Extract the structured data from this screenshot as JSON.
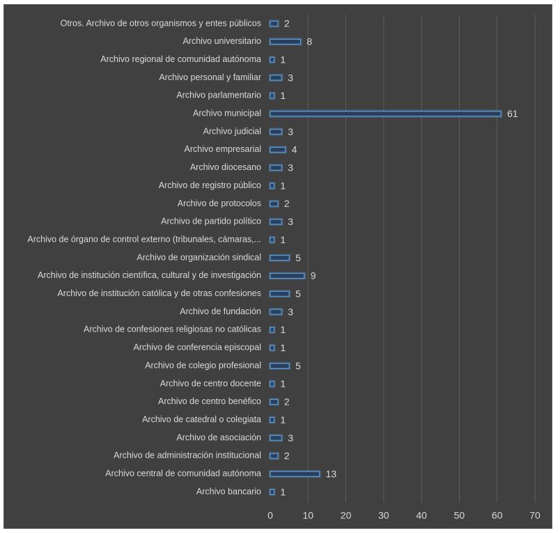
{
  "chart_data": {
    "type": "bar",
    "orientation": "horizontal",
    "title": "",
    "xlabel": "",
    "ylabel": "",
    "xlim": [
      0,
      70
    ],
    "x_ticks": [
      0,
      10,
      20,
      30,
      40,
      50,
      60,
      70
    ],
    "grid": "vertical",
    "legend": "none",
    "colors": {
      "background": "#404040",
      "bar_fill": "#2a3f5c",
      "bar_edge": "#5b9bd5",
      "text": "#d9d9d9",
      "grid": "#5e5e5e"
    },
    "categories": [
      "Otros. Archivo de otros organismos y entes públicos",
      "Archivo universitario",
      "Archivo regional de comunidad autónoma",
      "Archivo personal y familiar",
      "Archivo parlamentario",
      "Archivo municipal",
      "Archivo judicial",
      "Archivo empresarial",
      "Archivo diocesano",
      "Archivo de registro público",
      "Archivo de protocolos",
      "Archivo de partido político",
      "Archivo de órgano de control externo (tribunales, cámaras,...",
      "Archivo de organización sindical",
      "Archivo de institución científica, cultural y de investigación",
      "Archivo de institución católica y de otras confesiones",
      "Archivo de fundación",
      "Archivo de confesiones religiosas no católicas",
      "Archivo de conferencia episcopal",
      "Archivo de colegio profesional",
      "Archivo de centro docente",
      "Archivo de centro benéfico",
      "Archivo de catedral o colegiata",
      "Archivo de asociación",
      "Archivo de administración institucional",
      "Archivo central de comunidad autónoma",
      "Archivo bancario"
    ],
    "values": [
      2,
      8,
      1,
      3,
      1,
      61,
      3,
      4,
      3,
      1,
      2,
      3,
      1,
      5,
      9,
      5,
      3,
      1,
      1,
      5,
      1,
      2,
      1,
      3,
      2,
      13,
      1
    ]
  }
}
